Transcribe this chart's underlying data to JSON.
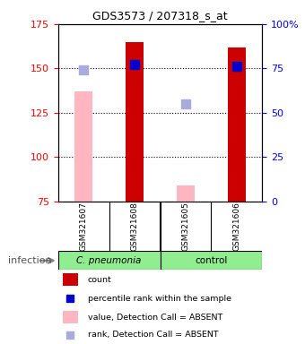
{
  "title": "GDS3573 / 207318_s_at",
  "samples": [
    "GSM321607",
    "GSM321608",
    "GSM321605",
    "GSM321606"
  ],
  "group_labels": [
    "C. pneumonia",
    "control"
  ],
  "ylim_left": [
    75,
    175
  ],
  "ylim_right": [
    0,
    100
  ],
  "yticks_left": [
    75,
    100,
    125,
    150,
    175
  ],
  "yticks_right": [
    0,
    25,
    50,
    75,
    100
  ],
  "yticklabels_right": [
    "0",
    "25",
    "50",
    "75",
    "100%"
  ],
  "bar_color_present": "#cc0000",
  "bar_color_absent": "#FFB6C1",
  "dot_color_present": "#0000cc",
  "dot_color_absent": "#aaaadd",
  "count_values": [
    null,
    165,
    null,
    162
  ],
  "count_absent_values": [
    137,
    null,
    84,
    null
  ],
  "rank_values": [
    null,
    152,
    null,
    151
  ],
  "rank_absent_values": [
    149,
    null,
    130,
    null
  ],
  "bar_width": 0.35,
  "dot_size": 55,
  "legend_items": [
    "count",
    "percentile rank within the sample",
    "value, Detection Call = ABSENT",
    "rank, Detection Call = ABSENT"
  ],
  "legend_colors": [
    "#cc0000",
    "#0000cc",
    "#FFB6C1",
    "#aaaadd"
  ],
  "xlabel_factor": "infection"
}
